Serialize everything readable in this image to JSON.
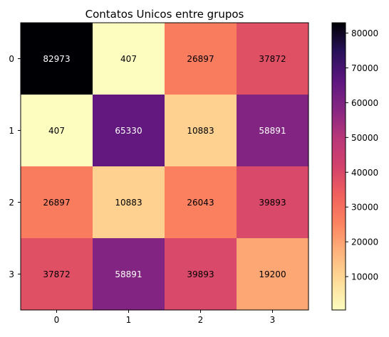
{
  "chart_data": {
    "type": "heatmap",
    "title": "Contatos Unicos entre grupos",
    "xlabel": "",
    "ylabel": "",
    "x_categories": [
      "0",
      "1",
      "2",
      "3"
    ],
    "y_categories": [
      "0",
      "1",
      "2",
      "3"
    ],
    "values": [
      [
        82973,
        407,
        26897,
        37872
      ],
      [
        407,
        65330,
        10883,
        58891
      ],
      [
        26897,
        10883,
        26043,
        39893
      ],
      [
        37872,
        58891,
        39893,
        19200
      ]
    ],
    "colormap": "magma_r",
    "colorbar": {
      "min": 407,
      "max": 82973,
      "ticks": [
        10000,
        20000,
        30000,
        40000,
        50000,
        60000,
        70000,
        80000
      ],
      "tick_labels": [
        "10000",
        "20000",
        "30000",
        "40000",
        "50000",
        "60000",
        "70000",
        "80000"
      ]
    },
    "annotation_colors": {
      "dark_text": "#000000",
      "light_text": "#ffffff"
    }
  }
}
